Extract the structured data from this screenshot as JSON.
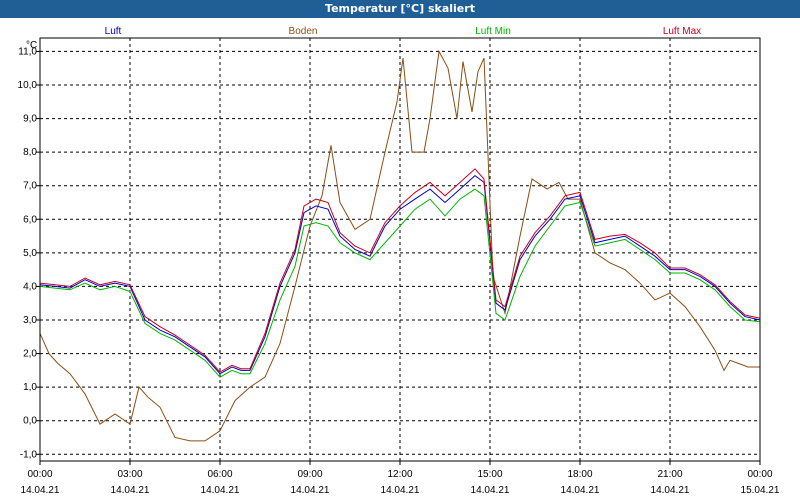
{
  "window": {
    "title": "Temperatur [°C] skaliert"
  },
  "chart_data": {
    "type": "line",
    "title": "Temperatur [°C] skaliert",
    "ylabel": "°C",
    "xlabel": "",
    "ylim": [
      -1.2,
      11.4
    ],
    "xlim_hours": [
      0,
      24
    ],
    "grid": true,
    "legend_position": "top",
    "yticks": [
      "-1,0",
      "0,0",
      "1,0",
      "2,0",
      "3,0",
      "4,0",
      "5,0",
      "6,0",
      "7,0",
      "8,0",
      "9,0",
      "10,0",
      "11,0"
    ],
    "xticks": [
      {
        "time": "00:00",
        "date": "14.04.21"
      },
      {
        "time": "03:00",
        "date": "14.04.21"
      },
      {
        "time": "06:00",
        "date": "14.04.21"
      },
      {
        "time": "09:00",
        "date": "14.04.21"
      },
      {
        "time": "12:00",
        "date": "14.04.21"
      },
      {
        "time": "15:00",
        "date": "14.04.21"
      },
      {
        "time": "18:00",
        "date": "14.04.21"
      },
      {
        "time": "21:00",
        "date": "14.04.21"
      },
      {
        "time": "00:00",
        "date": "15.04.21"
      }
    ],
    "series": [
      {
        "name": "Luft",
        "color": "#0000c8",
        "points": [
          [
            0,
            4.05
          ],
          [
            0.5,
            4.0
          ],
          [
            1,
            3.95
          ],
          [
            1.5,
            4.2
          ],
          [
            2,
            4.0
          ],
          [
            2.5,
            4.1
          ],
          [
            3,
            4.0
          ],
          [
            3.5,
            3.0
          ],
          [
            4,
            2.7
          ],
          [
            4.5,
            2.5
          ],
          [
            5,
            2.2
          ],
          [
            5.5,
            1.9
          ],
          [
            6,
            1.4
          ],
          [
            6.4,
            1.6
          ],
          [
            6.7,
            1.5
          ],
          [
            7,
            1.5
          ],
          [
            7.5,
            2.5
          ],
          [
            8,
            4.0
          ],
          [
            8.5,
            5.0
          ],
          [
            8.8,
            6.2
          ],
          [
            9.2,
            6.4
          ],
          [
            9.6,
            6.3
          ],
          [
            10,
            5.5
          ],
          [
            10.5,
            5.1
          ],
          [
            11,
            4.9
          ],
          [
            11.5,
            5.8
          ],
          [
            12,
            6.3
          ],
          [
            12.5,
            6.6
          ],
          [
            13,
            6.9
          ],
          [
            13.5,
            6.5
          ],
          [
            14,
            6.9
          ],
          [
            14.5,
            7.3
          ],
          [
            14.8,
            7.1
          ],
          [
            15.2,
            3.5
          ],
          [
            15.5,
            3.3
          ],
          [
            16,
            4.8
          ],
          [
            16.5,
            5.5
          ],
          [
            17,
            6.0
          ],
          [
            17.5,
            6.6
          ],
          [
            18,
            6.7
          ],
          [
            18.5,
            5.3
          ],
          [
            19,
            5.4
          ],
          [
            19.5,
            5.5
          ],
          [
            20,
            5.2
          ],
          [
            20.5,
            4.9
          ],
          [
            21,
            4.5
          ],
          [
            21.5,
            4.5
          ],
          [
            22,
            4.3
          ],
          [
            22.5,
            4.0
          ],
          [
            23,
            3.5
          ],
          [
            23.5,
            3.1
          ],
          [
            24,
            3.0
          ]
        ]
      },
      {
        "name": "Boden",
        "color": "#8b4e14",
        "points": [
          [
            0,
            2.6
          ],
          [
            0.3,
            2.0
          ],
          [
            0.6,
            1.7
          ],
          [
            1,
            1.4
          ],
          [
            1.5,
            0.8
          ],
          [
            2,
            -0.1
          ],
          [
            2.5,
            0.2
          ],
          [
            3,
            -0.1
          ],
          [
            3.3,
            1.0
          ],
          [
            3.6,
            0.7
          ],
          [
            4,
            0.4
          ],
          [
            4.5,
            -0.5
          ],
          [
            5,
            -0.6
          ],
          [
            5.5,
            -0.6
          ],
          [
            6,
            -0.3
          ],
          [
            6.5,
            0.6
          ],
          [
            7,
            1.0
          ],
          [
            7.5,
            1.3
          ],
          [
            8,
            2.3
          ],
          [
            8.5,
            4.0
          ],
          [
            9,
            5.8
          ],
          [
            9.4,
            6.7
          ],
          [
            9.7,
            8.2
          ],
          [
            10,
            6.5
          ],
          [
            10.5,
            5.7
          ],
          [
            11,
            6.0
          ],
          [
            11.5,
            8.0
          ],
          [
            11.9,
            9.5
          ],
          [
            12.1,
            10.8
          ],
          [
            12.4,
            8.0
          ],
          [
            12.8,
            8.0
          ],
          [
            13,
            9.0
          ],
          [
            13.3,
            11.0
          ],
          [
            13.6,
            10.5
          ],
          [
            13.9,
            9.0
          ],
          [
            14.1,
            10.7
          ],
          [
            14.4,
            9.2
          ],
          [
            14.6,
            10.4
          ],
          [
            14.8,
            10.8
          ],
          [
            15.1,
            4.3
          ],
          [
            15.5,
            3.2
          ],
          [
            16,
            5.5
          ],
          [
            16.4,
            7.2
          ],
          [
            16.9,
            6.9
          ],
          [
            17.3,
            7.1
          ],
          [
            17.6,
            6.6
          ],
          [
            18,
            6.6
          ],
          [
            18.5,
            5.0
          ],
          [
            19,
            4.7
          ],
          [
            19.5,
            4.5
          ],
          [
            20,
            4.1
          ],
          [
            20.5,
            3.6
          ],
          [
            21,
            3.8
          ],
          [
            21.5,
            3.4
          ],
          [
            22,
            2.8
          ],
          [
            22.5,
            2.1
          ],
          [
            22.8,
            1.5
          ],
          [
            23,
            1.8
          ],
          [
            23.3,
            1.7
          ],
          [
            23.6,
            1.6
          ],
          [
            24,
            1.6
          ]
        ]
      },
      {
        "name": "Luft Min",
        "color": "#00b400",
        "points": [
          [
            0,
            4.0
          ],
          [
            0.5,
            3.95
          ],
          [
            1,
            3.9
          ],
          [
            1.5,
            4.1
          ],
          [
            2,
            3.9
          ],
          [
            2.5,
            4.0
          ],
          [
            3,
            3.85
          ],
          [
            3.5,
            2.9
          ],
          [
            4,
            2.6
          ],
          [
            4.5,
            2.4
          ],
          [
            5,
            2.1
          ],
          [
            5.5,
            1.8
          ],
          [
            6,
            1.3
          ],
          [
            6.4,
            1.5
          ],
          [
            6.7,
            1.4
          ],
          [
            7,
            1.4
          ],
          [
            7.5,
            2.3
          ],
          [
            8,
            3.6
          ],
          [
            8.5,
            4.6
          ],
          [
            8.8,
            5.8
          ],
          [
            9.2,
            5.9
          ],
          [
            9.6,
            5.8
          ],
          [
            10,
            5.3
          ],
          [
            10.5,
            5.0
          ],
          [
            11,
            4.8
          ],
          [
            11.5,
            5.3
          ],
          [
            12,
            5.8
          ],
          [
            12.5,
            6.3
          ],
          [
            13,
            6.6
          ],
          [
            13.5,
            6.1
          ],
          [
            14,
            6.6
          ],
          [
            14.5,
            6.9
          ],
          [
            14.8,
            6.7
          ],
          [
            15.2,
            3.2
          ],
          [
            15.5,
            3.0
          ],
          [
            16,
            4.3
          ],
          [
            16.5,
            5.2
          ],
          [
            17,
            5.8
          ],
          [
            17.5,
            6.4
          ],
          [
            18,
            6.5
          ],
          [
            18.5,
            5.2
          ],
          [
            19,
            5.3
          ],
          [
            19.5,
            5.4
          ],
          [
            20,
            5.1
          ],
          [
            20.5,
            4.8
          ],
          [
            21,
            4.4
          ],
          [
            21.5,
            4.4
          ],
          [
            22,
            4.2
          ],
          [
            22.5,
            3.9
          ],
          [
            23,
            3.4
          ],
          [
            23.5,
            3.0
          ],
          [
            24,
            2.95
          ]
        ]
      },
      {
        "name": "Luft Max",
        "color": "#c8001e",
        "points": [
          [
            0,
            4.1
          ],
          [
            0.5,
            4.05
          ],
          [
            1,
            4.0
          ],
          [
            1.5,
            4.25
          ],
          [
            2,
            4.05
          ],
          [
            2.5,
            4.15
          ],
          [
            3,
            4.05
          ],
          [
            3.5,
            3.1
          ],
          [
            4,
            2.8
          ],
          [
            4.5,
            2.55
          ],
          [
            5,
            2.25
          ],
          [
            5.5,
            1.95
          ],
          [
            6,
            1.45
          ],
          [
            6.4,
            1.65
          ],
          [
            6.7,
            1.55
          ],
          [
            7,
            1.55
          ],
          [
            7.5,
            2.6
          ],
          [
            8,
            4.1
          ],
          [
            8.5,
            5.1
          ],
          [
            8.8,
            6.4
          ],
          [
            9.2,
            6.6
          ],
          [
            9.6,
            6.5
          ],
          [
            10,
            5.6
          ],
          [
            10.5,
            5.2
          ],
          [
            11,
            5.0
          ],
          [
            11.5,
            5.9
          ],
          [
            12,
            6.4
          ],
          [
            12.5,
            6.8
          ],
          [
            13,
            7.1
          ],
          [
            13.5,
            6.7
          ],
          [
            14,
            7.1
          ],
          [
            14.5,
            7.5
          ],
          [
            14.8,
            7.2
          ],
          [
            15.2,
            3.6
          ],
          [
            15.5,
            3.4
          ],
          [
            16,
            4.9
          ],
          [
            16.5,
            5.6
          ],
          [
            17,
            6.1
          ],
          [
            17.5,
            6.7
          ],
          [
            18,
            6.8
          ],
          [
            18.5,
            5.4
          ],
          [
            19,
            5.5
          ],
          [
            19.5,
            5.55
          ],
          [
            20,
            5.3
          ],
          [
            20.5,
            5.0
          ],
          [
            21,
            4.55
          ],
          [
            21.5,
            4.55
          ],
          [
            22,
            4.35
          ],
          [
            22.5,
            4.05
          ],
          [
            23,
            3.55
          ],
          [
            23.5,
            3.15
          ],
          [
            24,
            3.05
          ]
        ]
      }
    ]
  }
}
